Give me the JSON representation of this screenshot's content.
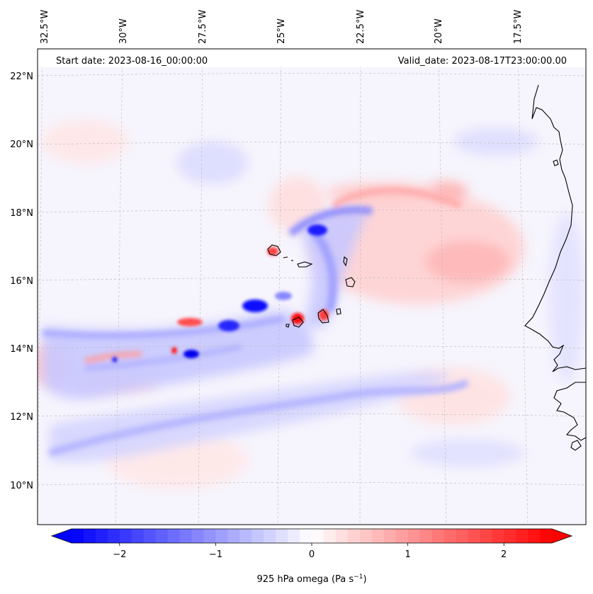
{
  "header": {
    "start_date": "Start date: 2023-08-16_00:00:00",
    "valid_date": "Valid_date: 2023-08-17T23:00:00.00"
  },
  "longitude_labels": [
    "32.5°W",
    "30°W",
    "27.5°W",
    "25°W",
    "22.5°W",
    "20°W",
    "17.5°W"
  ],
  "latitude_labels": [
    "22°N",
    "20°N",
    "18°N",
    "16°N",
    "14°N",
    "12°N",
    "10°N"
  ],
  "colorbar": {
    "label_main": "925 hPa omega (Pa s",
    "label_exp": "−1",
    "label_close": ")",
    "ticks": [
      "−2",
      "−1",
      "0",
      "1",
      "2"
    ],
    "tick_values": [
      -2,
      -1,
      0,
      1,
      2
    ],
    "min": -2.5,
    "max": 2.5,
    "colors": [
      "#0000ff",
      "#ffffff",
      "#ff0000"
    ]
  },
  "map": {
    "lon_range": [
      -33,
      -15.5
    ],
    "lat_range": [
      8.8,
      22.8
    ],
    "field": "925 hPa omega",
    "colormap": "bwr"
  }
}
